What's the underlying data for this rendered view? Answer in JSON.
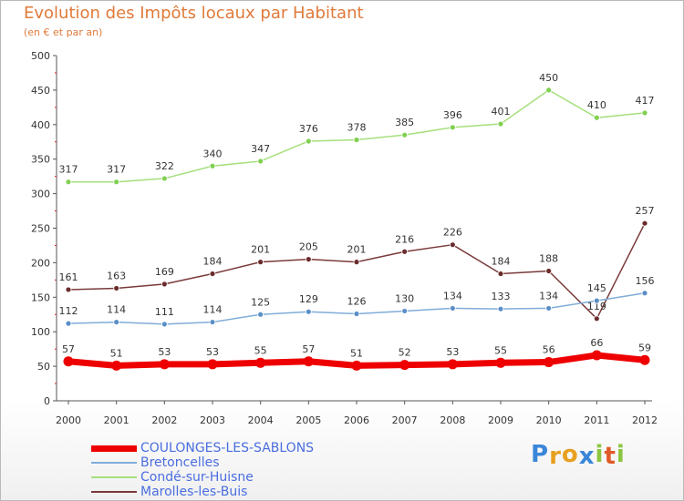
{
  "chart_data": {
    "type": "line",
    "title": "Evolution des Impôts locaux par Habitant",
    "subtitle": "(en € et par an)",
    "xlabel": "",
    "ylabel": "",
    "ylim": [
      0,
      500
    ],
    "yticks": [
      "0",
      "50",
      "100",
      "150",
      "200",
      "250",
      "300",
      "350",
      "400",
      "450",
      "500"
    ],
    "categories": [
      "2000",
      "2001",
      "2002",
      "2003",
      "2004",
      "2005",
      "2006",
      "2007",
      "2008",
      "2009",
      "2010",
      "2011",
      "2012"
    ],
    "grid": false,
    "legend_position": "bottom-left",
    "series": [
      {
        "name": "Condé-sur-Huisne",
        "color": "#80d050",
        "stroke": "#a6df7c",
        "values": [
          317,
          317,
          322,
          340,
          347,
          376,
          378,
          385,
          396,
          401,
          450,
          410,
          417
        ]
      },
      {
        "name": "Marolles-les-Buis",
        "color": "#6b2c2c",
        "stroke": "#7a3a3a",
        "values": [
          161,
          163,
          169,
          184,
          201,
          205,
          201,
          216,
          226,
          184,
          188,
          119,
          257
        ]
      },
      {
        "name": "Bretoncelles",
        "color": "#5b8fc7",
        "stroke": "#80acd8",
        "values": [
          112,
          114,
          111,
          114,
          125,
          129,
          126,
          130,
          134,
          133,
          134,
          145,
          156
        ]
      },
      {
        "name": "COULONGES-LES-SABLONS",
        "color": "#ee0000",
        "stroke": "#ee0000",
        "values": [
          57,
          51,
          53,
          53,
          55,
          57,
          51,
          52,
          53,
          55,
          56,
          66,
          59
        ]
      }
    ]
  },
  "legend": [
    {
      "label": "COULONGES-LES-SABLONS",
      "color": "#ee0000"
    },
    {
      "label": "Bretoncelles",
      "color": "#80acd8"
    },
    {
      "label": "Condé-sur-Huisne",
      "color": "#a6df7c"
    },
    {
      "label": "Marolles-les-Buis",
      "color": "#7a3a3a"
    }
  ],
  "logo": {
    "letters": [
      "P",
      "r",
      "o",
      "x",
      "i",
      "t",
      "i"
    ],
    "colors": [
      "#3a86d8",
      "#e8a020",
      "#e8a020",
      "#3a86d8",
      "#8cc63f",
      "#e05a2a",
      "#8cc63f"
    ]
  }
}
